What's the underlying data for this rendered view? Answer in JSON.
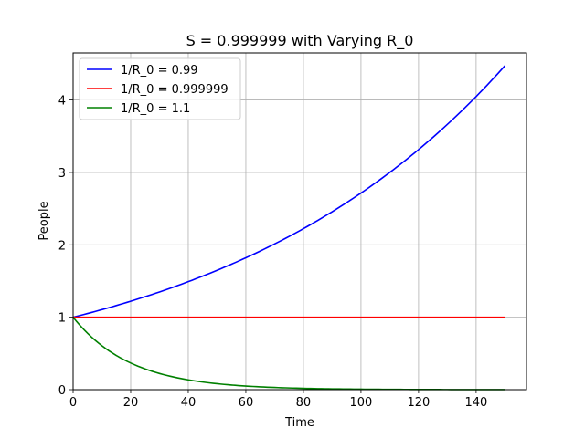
{
  "chart_data": {
    "type": "line",
    "title": "S = 0.999999 with Varying R_0",
    "xlabel": "Time",
    "ylabel": "People",
    "xlim": [
      0,
      157.5
    ],
    "ylim": [
      0,
      4.65
    ],
    "xticks": [
      0,
      20,
      40,
      60,
      80,
      100,
      120,
      140
    ],
    "yticks": [
      0,
      1,
      2,
      3,
      4
    ],
    "grid": true,
    "legend_position": "top-left",
    "x": [
      0,
      10,
      20,
      30,
      40,
      50,
      60,
      70,
      80,
      90,
      100,
      110,
      120,
      130,
      140,
      150
    ],
    "series": [
      {
        "name": "1/R_0 = 0.99",
        "color": "#0000ff",
        "values": [
          1.0,
          1.105,
          1.221,
          1.349,
          1.491,
          1.648,
          1.821,
          2.012,
          2.223,
          2.457,
          2.715,
          3.0,
          3.315,
          3.663,
          4.048,
          4.473
        ]
      },
      {
        "name": "1/R_0 = 0.999999",
        "color": "#ff0000",
        "values": [
          1.0,
          1.0,
          1.0,
          1.0,
          1.0,
          1.0,
          1.0,
          1.0,
          1.0,
          1.0,
          1.0,
          1.0,
          1.0,
          1.0,
          1.0,
          1.0
        ]
      },
      {
        "name": "1/R_0 = 1.1",
        "color": "#008000",
        "values": [
          1.0,
          0.6065,
          0.3679,
          0.2231,
          0.1353,
          0.0821,
          0.0498,
          0.0302,
          0.0183,
          0.0111,
          0.0067,
          0.0041,
          0.0025,
          0.0015,
          0.0009,
          0.0006
        ]
      }
    ]
  }
}
